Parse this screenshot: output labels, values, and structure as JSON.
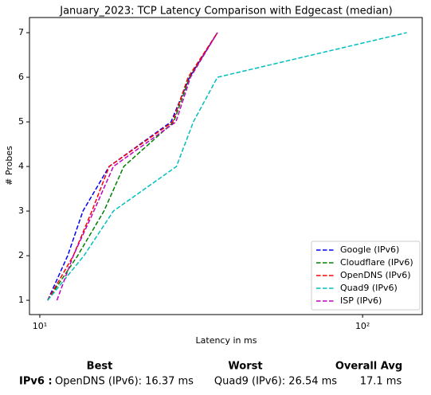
{
  "chart_data": {
    "type": "line",
    "title": "January_2023: TCP Latency Comparison with Edgecast (median)",
    "xlabel": "Latency in ms",
    "ylabel": "# Probes",
    "xscale": "log",
    "xlim": [
      9.29,
      153
    ],
    "ylim": [
      0.68,
      7.34
    ],
    "xticks": [
      {
        "value": 10,
        "label": "10¹"
      },
      {
        "value": 100,
        "label": "10²"
      }
    ],
    "yticks": [
      1,
      2,
      3,
      4,
      5,
      6,
      7
    ],
    "legend": "lower right",
    "series": [
      {
        "name": "Google (IPv6)",
        "color": "#0000ff",
        "x": [
          10.58,
          12.2,
          13.6,
          16.4,
          25.5,
          29.1,
          35.5
        ],
        "values": [
          1,
          2,
          3,
          4,
          5,
          6,
          7
        ]
      },
      {
        "name": "Cloudflare (IPv6)",
        "color": "#008000",
        "x": [
          10.58,
          13.1,
          15.8,
          18.2,
          26.0,
          29.1,
          35.5
        ],
        "values": [
          1,
          2,
          3,
          4,
          5,
          6,
          7
        ]
      },
      {
        "name": "OpenDNS (IPv6)",
        "color": "#ff0000",
        "x": [
          10.58,
          12.7,
          14.5,
          16.4,
          25.8,
          28.8,
          35.5
        ],
        "values": [
          1,
          2,
          3,
          4,
          5,
          6,
          7
        ]
      },
      {
        "name": "Quad9 (IPv6)",
        "color": "#00bfbf",
        "x": [
          10.58,
          13.7,
          16.9,
          26.5,
          29.9,
          35.5,
          137
        ],
        "values": [
          1,
          2,
          3,
          4,
          5,
          6,
          7
        ]
      },
      {
        "name": "ISP (IPv6)",
        "color": "#bf00bf",
        "x": [
          11.3,
          12.7,
          14.7,
          16.9,
          26.4,
          29.3,
          35.5
        ],
        "values": [
          1,
          2,
          3,
          4,
          5,
          6,
          7
        ]
      }
    ]
  },
  "summary": {
    "headers": [
      "Best",
      "Worst",
      "Overall Avg"
    ],
    "rows": [
      [
        "IPv6 :",
        "OpenDNS (IPv6): 16.37 ms",
        "Quad9 (IPv6): 26.54 ms",
        "17.1 ms"
      ]
    ]
  }
}
